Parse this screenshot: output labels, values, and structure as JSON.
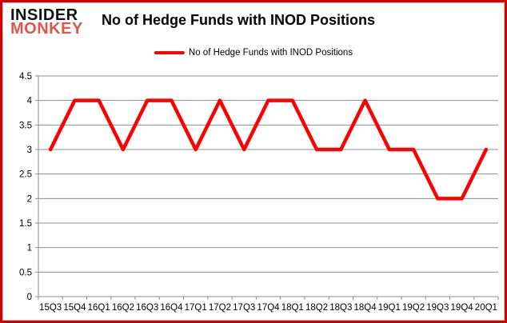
{
  "brand": {
    "line1": "INSIDER",
    "line2": "MONKEY",
    "line2_color": "#e0564b"
  },
  "header": {
    "title": "No of Hedge Funds with INOD Positions"
  },
  "legend": {
    "label": "No of Hedge Funds with INOD Positions",
    "swatch_color": "#ff0000"
  },
  "colors": {
    "page_border": "#d40000",
    "chart_frame": "#c8c8c8",
    "gridline": "#8c8c8c",
    "axis": "#8c8c8c",
    "series_line": "#ff0000",
    "axis_text": "#000000"
  },
  "chart_data": {
    "type": "line",
    "title": "No of Hedge Funds with INOD Positions",
    "categories": [
      "15Q3",
      "15Q4",
      "16Q1",
      "16Q2",
      "16Q3",
      "16Q4",
      "17Q1",
      "17Q2",
      "17Q3",
      "17Q4",
      "18Q1",
      "18Q2",
      "18Q3",
      "18Q4",
      "19Q1",
      "19Q2",
      "19Q3",
      "19Q4",
      "20Q1"
    ],
    "series": [
      {
        "name": "No of Hedge Funds with INOD Positions",
        "color": "#ff0000",
        "values": [
          3,
          4,
          4,
          3,
          4,
          4,
          3,
          4,
          3,
          4,
          4,
          3,
          3,
          4,
          3,
          3,
          2,
          2,
          3
        ]
      }
    ],
    "xlabel": "",
    "ylabel": "",
    "ylim": [
      0,
      4.5
    ],
    "ytick_step": 0.5,
    "grid": true,
    "legend_position": "top-center"
  }
}
